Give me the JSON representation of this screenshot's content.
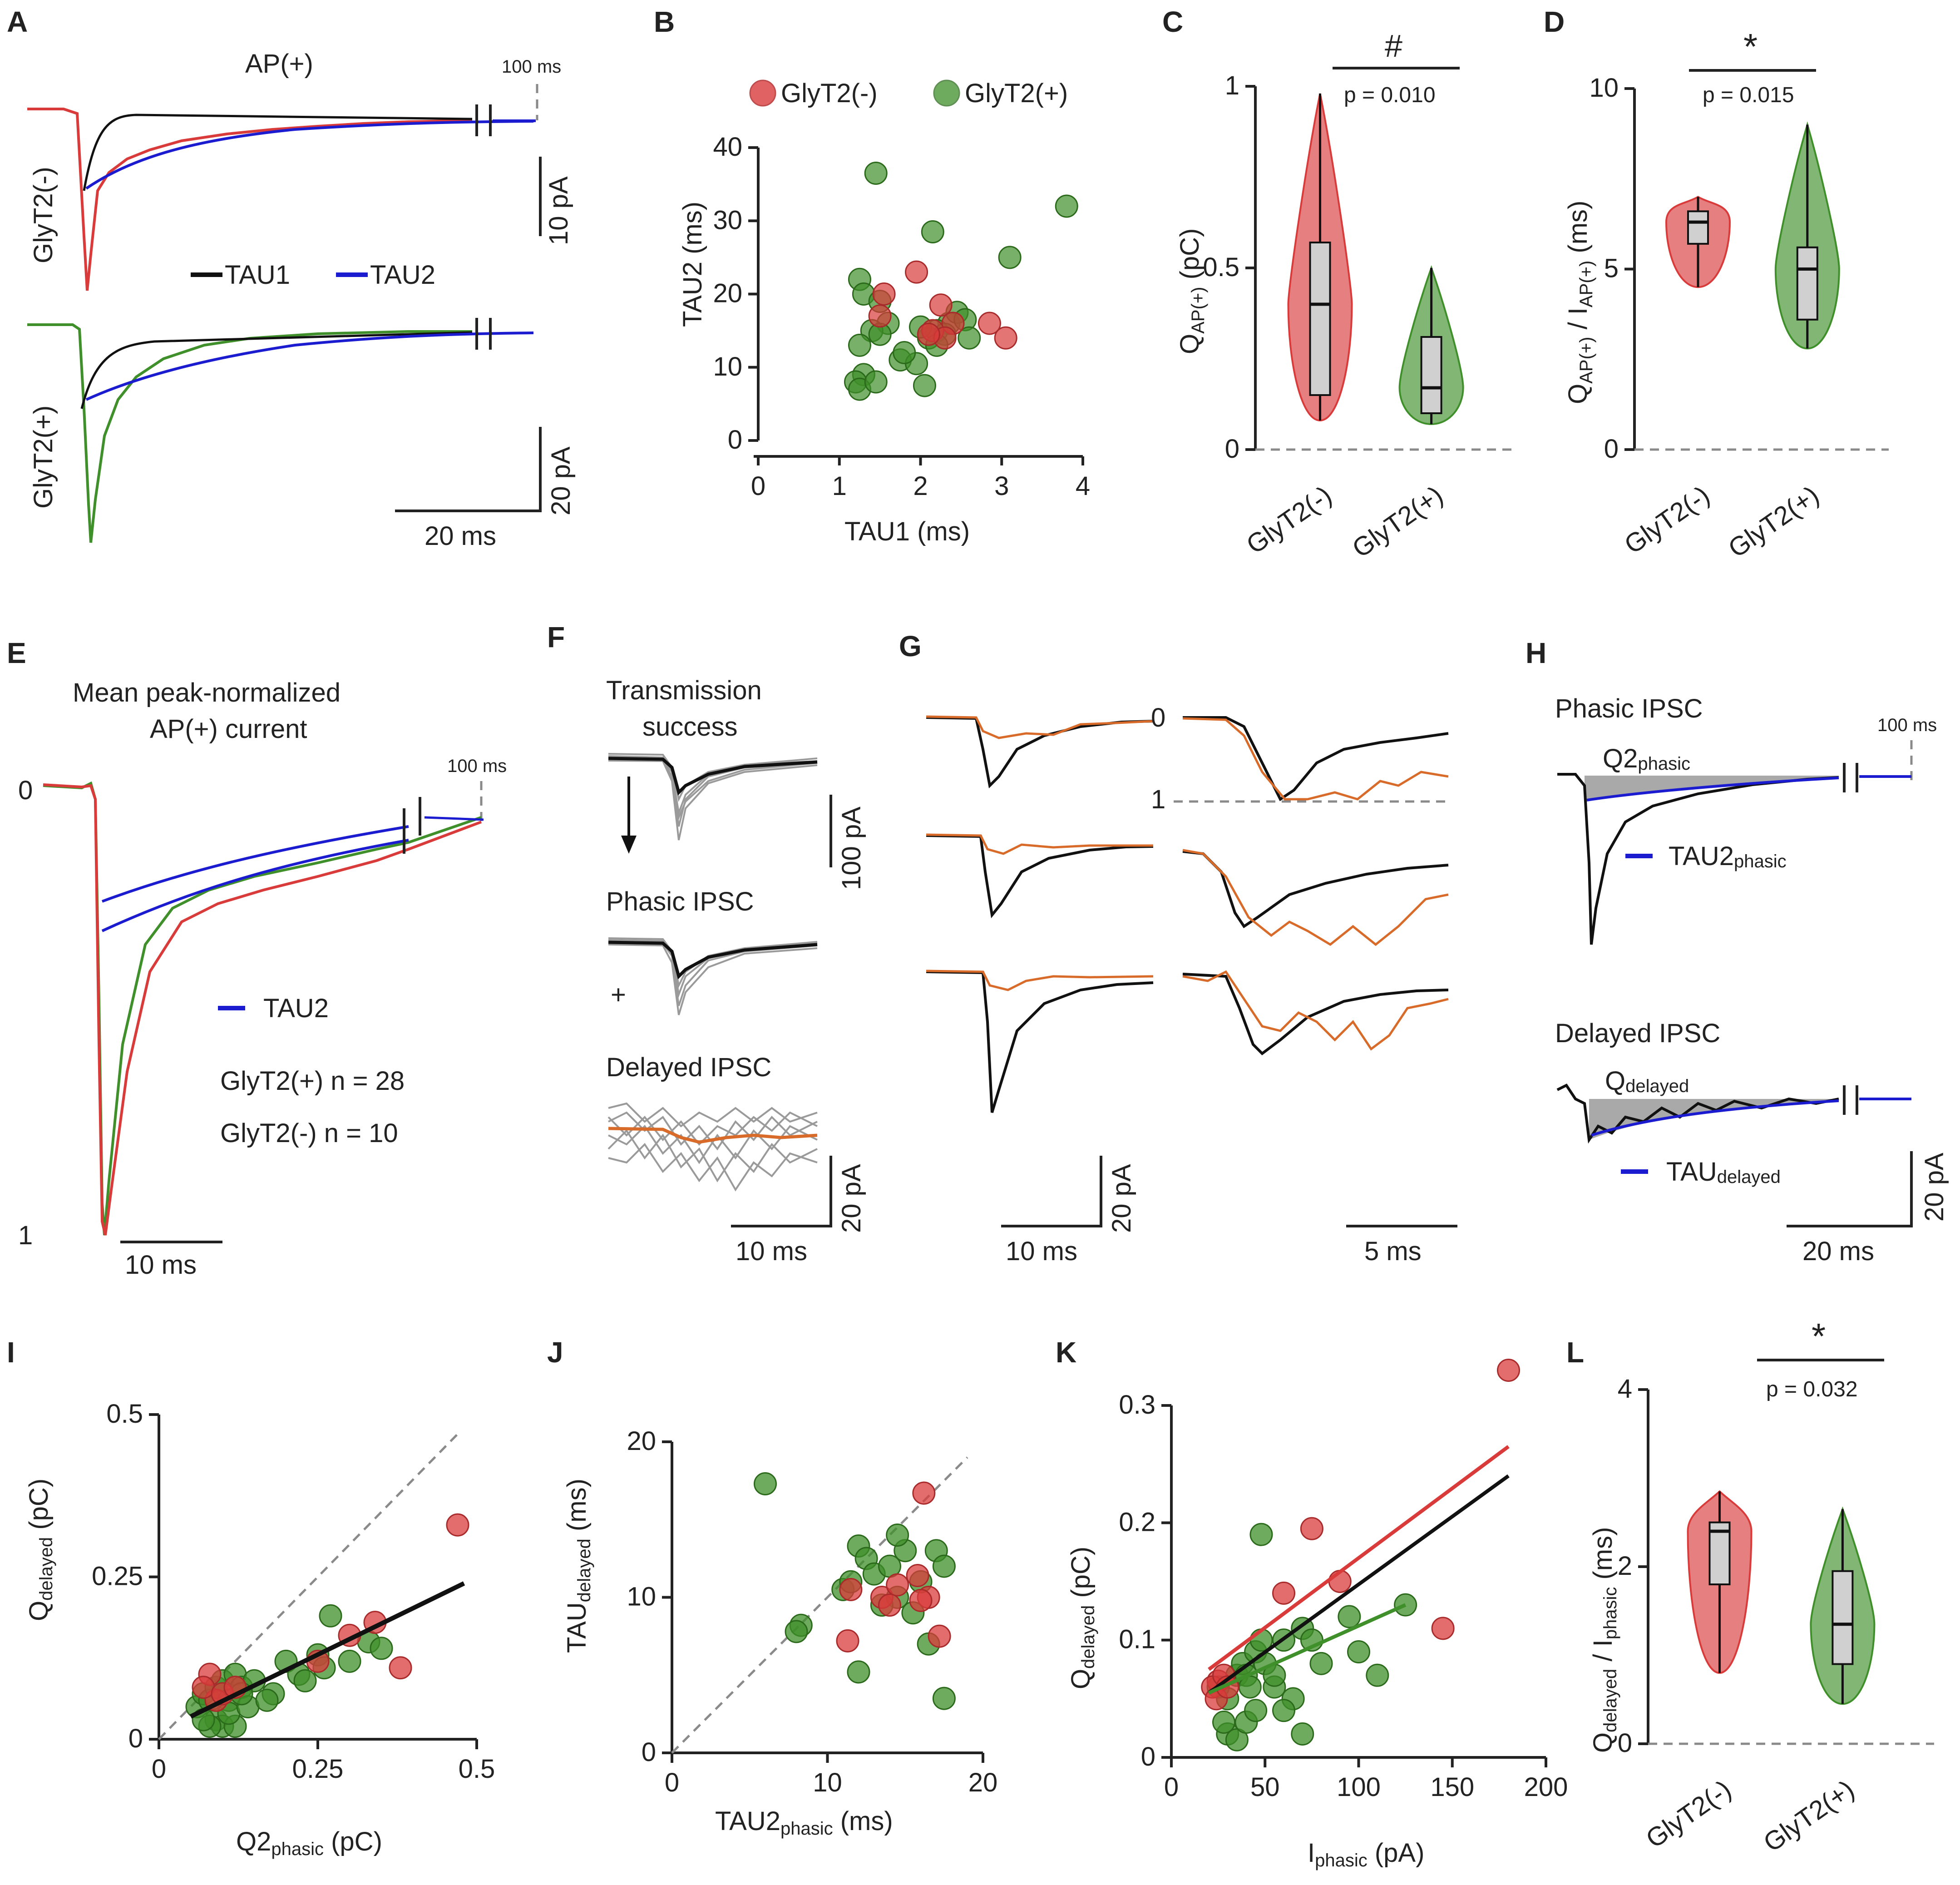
{
  "panel_labels": [
    "A",
    "B",
    "C",
    "D",
    "E",
    "F",
    "G",
    "H",
    "I",
    "J",
    "K",
    "L"
  ],
  "colors": {
    "red": "#d93b3b",
    "green": "#3f8f2a",
    "blue": "#1b1bd0",
    "black": "#111111",
    "gray": "#9a9a9a",
    "orange": "#d86b2a"
  },
  "panelA": {
    "title": "AP(+)",
    "scale_100ms": "100 ms",
    "ylabel_top": "GlyT2(-)",
    "ylabel_bottom": "GlyT2(+)",
    "legend_tau1": "TAU1",
    "legend_tau2": "TAU2",
    "scale_10pA": "10 pA",
    "scale_20pA": "20 pA",
    "scale_20ms": "20 ms"
  },
  "panelE": {
    "title_line1": "Mean peak-normalized",
    "title_line2": "AP(+) current",
    "scale_100ms": "100 ms",
    "y_top": "0",
    "y_bottom": "1",
    "legend_tau2": "TAU2",
    "legend_green": "GlyT2(+) n = 28",
    "legend_red": "GlyT2(-) n = 10",
    "scale_10ms": "10 ms"
  },
  "panelF": {
    "label1_line1": "Transmission",
    "label1_line2": "success",
    "label2": "Phasic IPSC",
    "plus": "+",
    "label3": "Delayed IPSC",
    "scale_100pA": "100 pA",
    "scale_20pA": "20 pA",
    "scale_10ms": "10 ms"
  },
  "panelG": {
    "y0": "0",
    "y1": "1",
    "scale_20pA": "20 pA",
    "scale_10ms": "10 ms",
    "scale_5ms": "5 ms"
  },
  "panelH": {
    "label_phasic": "Phasic IPSC",
    "scale_100ms": "100 ms",
    "q2_main": "Q2",
    "q2_sub": "phasic",
    "tau2_main": "TAU2",
    "tau2_sub": "phasic",
    "label_delayed": "Delayed IPSC",
    "q_main": "Q",
    "q_sub": "delayed",
    "taud_main": "TAU",
    "taud_sub": "delayed",
    "scale_20pA": "20 pA",
    "scale_20ms": "20 ms"
  },
  "chart_data": [
    {
      "panel": "B",
      "type": "scatter",
      "legend": [
        "GlyT2(-)",
        "GlyT2(+)"
      ],
      "xlabel": "TAU1 (ms)",
      "ylabel": "TAU2 (ms)",
      "xlim": [
        0,
        4
      ],
      "ylim": [
        0,
        40
      ],
      "xticks": [
        "0",
        "1",
        "2",
        "3",
        "4"
      ],
      "yticks": [
        "0",
        "10",
        "20",
        "30",
        "40"
      ],
      "series": [
        {
          "name": "GlyT2(+)",
          "color": "#3f8f2a",
          "points": [
            [
              1.45,
              36.5
            ],
            [
              3.8,
              32
            ],
            [
              2.15,
              28.5
            ],
            [
              3.1,
              25
            ],
            [
              1.25,
              22
            ],
            [
              1.3,
              20
            ],
            [
              1.5,
              19
            ],
            [
              1.6,
              16
            ],
            [
              1.4,
              15
            ],
            [
              1.25,
              13
            ],
            [
              1.3,
              9
            ],
            [
              1.2,
              8
            ],
            [
              1.25,
              7
            ],
            [
              1.45,
              8
            ],
            [
              1.75,
              11
            ],
            [
              1.95,
              10.5
            ],
            [
              2.05,
              7.5
            ],
            [
              2.1,
              14
            ],
            [
              2.35,
              16
            ],
            [
              2.45,
              17.5
            ],
            [
              2.55,
              16.5
            ],
            [
              2.6,
              14
            ],
            [
              2.2,
              15
            ],
            [
              1.8,
              12
            ],
            [
              2.3,
              14.5
            ],
            [
              2.0,
              15.5
            ],
            [
              1.5,
              14.5
            ],
            [
              2.2,
              13
            ]
          ]
        },
        {
          "name": "GlyT2(-)",
          "color": "#d93b3b",
          "points": [
            [
              1.95,
              23
            ],
            [
              1.55,
              20
            ],
            [
              1.5,
              17
            ],
            [
              2.25,
              18.5
            ],
            [
              2.4,
              16
            ],
            [
              2.85,
              16
            ],
            [
              3.05,
              14
            ],
            [
              2.15,
              15
            ],
            [
              2.3,
              14
            ],
            [
              2.1,
              14.5
            ]
          ]
        }
      ]
    },
    {
      "panel": "C",
      "type": "violin",
      "ylabel_main": "Q",
      "ylabel_sub": "AP(+)",
      "ylabel_unit": " (pC)",
      "ylim": [
        0,
        1
      ],
      "yticks": [
        "0",
        "0.5",
        "1"
      ],
      "categories": [
        "GlyT2(-)",
        "GlyT2(+)"
      ],
      "significance": "#",
      "pvalue": "p = 0.010",
      "box": [
        {
          "min": 0.08,
          "q1": 0.15,
          "median": 0.4,
          "q3": 0.57,
          "max": 0.98
        },
        {
          "min": 0.07,
          "q1": 0.1,
          "median": 0.17,
          "q3": 0.31,
          "max": 0.5
        }
      ]
    },
    {
      "panel": "D",
      "type": "violin",
      "ylabel_main": "Q",
      "ylabel_sub": "AP(+)",
      "ylabel_mid": " / I",
      "ylabel_sub2": "AP(+)",
      "ylabel_unit": " (ms)",
      "ylim": [
        0,
        10
      ],
      "yticks": [
        "0",
        "5",
        "10"
      ],
      "categories": [
        "GlyT2(-)",
        "GlyT2(+)"
      ],
      "significance": "*",
      "pvalue": "p = 0.015",
      "box": [
        {
          "min": 4.5,
          "q1": 5.7,
          "median": 6.3,
          "q3": 6.6,
          "max": 7.0
        },
        {
          "min": 2.8,
          "q1": 3.6,
          "median": 5.0,
          "q3": 5.6,
          "max": 9.0
        }
      ]
    },
    {
      "panel": "I",
      "type": "scatter",
      "xlabel_main": "Q2",
      "xlabel_sub": "phasic",
      "xlabel_unit": " (pC)",
      "ylabel_main": "Q",
      "ylabel_sub": "delayed",
      "ylabel_unit": " (pC)",
      "xlim": [
        0,
        0.5
      ],
      "ylim": [
        0,
        0.5
      ],
      "xticks": [
        "0",
        "0.25",
        "0.5"
      ],
      "yticks": [
        "0",
        "0.25",
        "0.5"
      ],
      "fit": [
        [
          0.05,
          0.035
        ],
        [
          0.48,
          0.24
        ]
      ],
      "identity": true,
      "series": [
        {
          "name": "GlyT2(+)",
          "color": "#3f8f2a",
          "points": [
            [
              0.06,
              0.05
            ],
            [
              0.07,
              0.07
            ],
            [
              0.08,
              0.06
            ],
            [
              0.09,
              0.08
            ],
            [
              0.1,
              0.09
            ],
            [
              0.11,
              0.06
            ],
            [
              0.12,
              0.1
            ],
            [
              0.13,
              0.08
            ],
            [
              0.15,
              0.09
            ],
            [
              0.18,
              0.07
            ],
            [
              0.2,
              0.12
            ],
            [
              0.22,
              0.1
            ],
            [
              0.25,
              0.13
            ],
            [
              0.27,
              0.19
            ],
            [
              0.3,
              0.12
            ],
            [
              0.33,
              0.15
            ],
            [
              0.35,
              0.14
            ],
            [
              0.09,
              0.03
            ],
            [
              0.1,
              0.02
            ],
            [
              0.12,
              0.02
            ],
            [
              0.08,
              0.02
            ],
            [
              0.11,
              0.04
            ],
            [
              0.07,
              0.03
            ],
            [
              0.14,
              0.05
            ],
            [
              0.17,
              0.06
            ],
            [
              0.26,
              0.11
            ],
            [
              0.23,
              0.09
            ],
            [
              0.13,
              0.07
            ]
          ]
        },
        {
          "name": "GlyT2(-)",
          "color": "#d93b3b",
          "points": [
            [
              0.47,
              0.33
            ],
            [
              0.34,
              0.18
            ],
            [
              0.38,
              0.11
            ],
            [
              0.3,
              0.16
            ],
            [
              0.08,
              0.1
            ],
            [
              0.09,
              0.06
            ],
            [
              0.07,
              0.08
            ],
            [
              0.1,
              0.07
            ],
            [
              0.12,
              0.08
            ],
            [
              0.25,
              0.12
            ]
          ]
        }
      ]
    },
    {
      "panel": "J",
      "type": "scatter",
      "xlabel_main": "TAU2",
      "xlabel_sub": "phasic",
      "xlabel_unit": " (ms)",
      "ylabel_main": "TAU",
      "ylabel_sub": "delayed",
      "ylabel_unit": " (ms)",
      "xlim": [
        0,
        20
      ],
      "ylim": [
        0,
        20
      ],
      "xticks": [
        "0",
        "10",
        "20"
      ],
      "yticks": [
        "0",
        "10",
        "20"
      ],
      "identity": true,
      "series": [
        {
          "name": "GlyT2(+)",
          "color": "#3f8f2a",
          "points": [
            [
              6,
              17.3
            ],
            [
              8.3,
              8.2
            ],
            [
              8,
              7.8
            ],
            [
              11,
              10.5
            ],
            [
              12,
              13.3
            ],
            [
              12.5,
              12.5
            ],
            [
              13,
              11.5
            ],
            [
              14,
              12
            ],
            [
              14.5,
              10
            ],
            [
              15,
              13
            ],
            [
              16,
              11
            ],
            [
              17,
              13
            ],
            [
              17.5,
              12
            ],
            [
              16.5,
              7
            ],
            [
              15.5,
              9
            ],
            [
              13.5,
              9.5
            ],
            [
              12,
              5.2
            ],
            [
              17.5,
              3.5
            ],
            [
              14.5,
              14
            ],
            [
              11.5,
              11
            ]
          ]
        },
        {
          "name": "GlyT2(-)",
          "color": "#d93b3b",
          "points": [
            [
              16.2,
              16.7
            ],
            [
              11.5,
              10.5
            ],
            [
              11.3,
              7.2
            ],
            [
              13.5,
              10
            ],
            [
              14.5,
              10.8
            ],
            [
              15.8,
              11.4
            ],
            [
              16.5,
              10
            ],
            [
              17.2,
              7.5
            ],
            [
              14,
              9.5
            ],
            [
              16,
              9.8
            ]
          ]
        }
      ]
    },
    {
      "panel": "K",
      "type": "scatter",
      "xlabel_main": "I",
      "xlabel_sub": "phasic",
      "xlabel_unit": " (pA)",
      "ylabel_main": "Q",
      "ylabel_sub": "delayed",
      "ylabel_unit": " (pC)",
      "xlim": [
        0,
        200
      ],
      "ylim": [
        0,
        0.3
      ],
      "xticks": [
        "0",
        "50",
        "100",
        "150",
        "200"
      ],
      "yticks": [
        "0",
        "0.1",
        "0.2",
        "0.3"
      ],
      "fits": [
        {
          "color": "#d93b3b",
          "points": [
            [
              20,
              0.075
            ],
            [
              180,
              0.265
            ]
          ]
        },
        {
          "color": "#111111",
          "points": [
            [
              20,
              0.055
            ],
            [
              180,
              0.24
            ]
          ]
        },
        {
          "color": "#3f8f2a",
          "points": [
            [
              20,
              0.055
            ],
            [
              125,
              0.13
            ]
          ]
        }
      ],
      "series": [
        {
          "name": "GlyT2(+)",
          "color": "#3f8f2a",
          "points": [
            [
              25,
              0.06
            ],
            [
              30,
              0.05
            ],
            [
              35,
              0.07
            ],
            [
              38,
              0.08
            ],
            [
              40,
              0.07
            ],
            [
              45,
              0.09
            ],
            [
              48,
              0.1
            ],
            [
              50,
              0.08
            ],
            [
              55,
              0.06
            ],
            [
              60,
              0.1
            ],
            [
              65,
              0.05
            ],
            [
              70,
              0.11
            ],
            [
              75,
              0.1
            ],
            [
              80,
              0.08
            ],
            [
              95,
              0.12
            ],
            [
              100,
              0.09
            ],
            [
              110,
              0.07
            ],
            [
              125,
              0.13
            ],
            [
              48,
              0.19
            ],
            [
              30,
              0.02
            ],
            [
              35,
              0.015
            ],
            [
              40,
              0.03
            ],
            [
              45,
              0.04
            ],
            [
              60,
              0.04
            ],
            [
              70,
              0.02
            ],
            [
              28,
              0.03
            ],
            [
              55,
              0.07
            ],
            [
              42,
              0.06
            ]
          ]
        },
        {
          "name": "GlyT2(-)",
          "color": "#d93b3b",
          "points": [
            [
              180,
              0.33
            ],
            [
              75,
              0.195
            ],
            [
              90,
              0.15
            ],
            [
              60,
              0.14
            ],
            [
              145,
              0.11
            ],
            [
              25,
              0.065
            ],
            [
              22,
              0.06
            ],
            [
              28,
              0.07
            ],
            [
              24,
              0.05
            ],
            [
              30,
              0.06
            ]
          ]
        }
      ]
    },
    {
      "panel": "L",
      "type": "violin",
      "ylabel_main": "Q",
      "ylabel_sub": "delayed",
      "ylabel_mid": " / I",
      "ylabel_sub2": "phasic",
      "ylabel_unit": " (ms)",
      "ylim": [
        0,
        4
      ],
      "yticks": [
        "0",
        "2",
        "4"
      ],
      "categories": [
        "GlyT2(-)",
        "GlyT2(+)"
      ],
      "significance": "*",
      "pvalue": "p = 0.032",
      "box": [
        {
          "min": 0.8,
          "q1": 1.8,
          "median": 2.4,
          "q3": 2.5,
          "max": 2.85
        },
        {
          "min": 0.45,
          "q1": 0.9,
          "median": 1.35,
          "q3": 1.95,
          "max": 2.65
        }
      ]
    }
  ]
}
